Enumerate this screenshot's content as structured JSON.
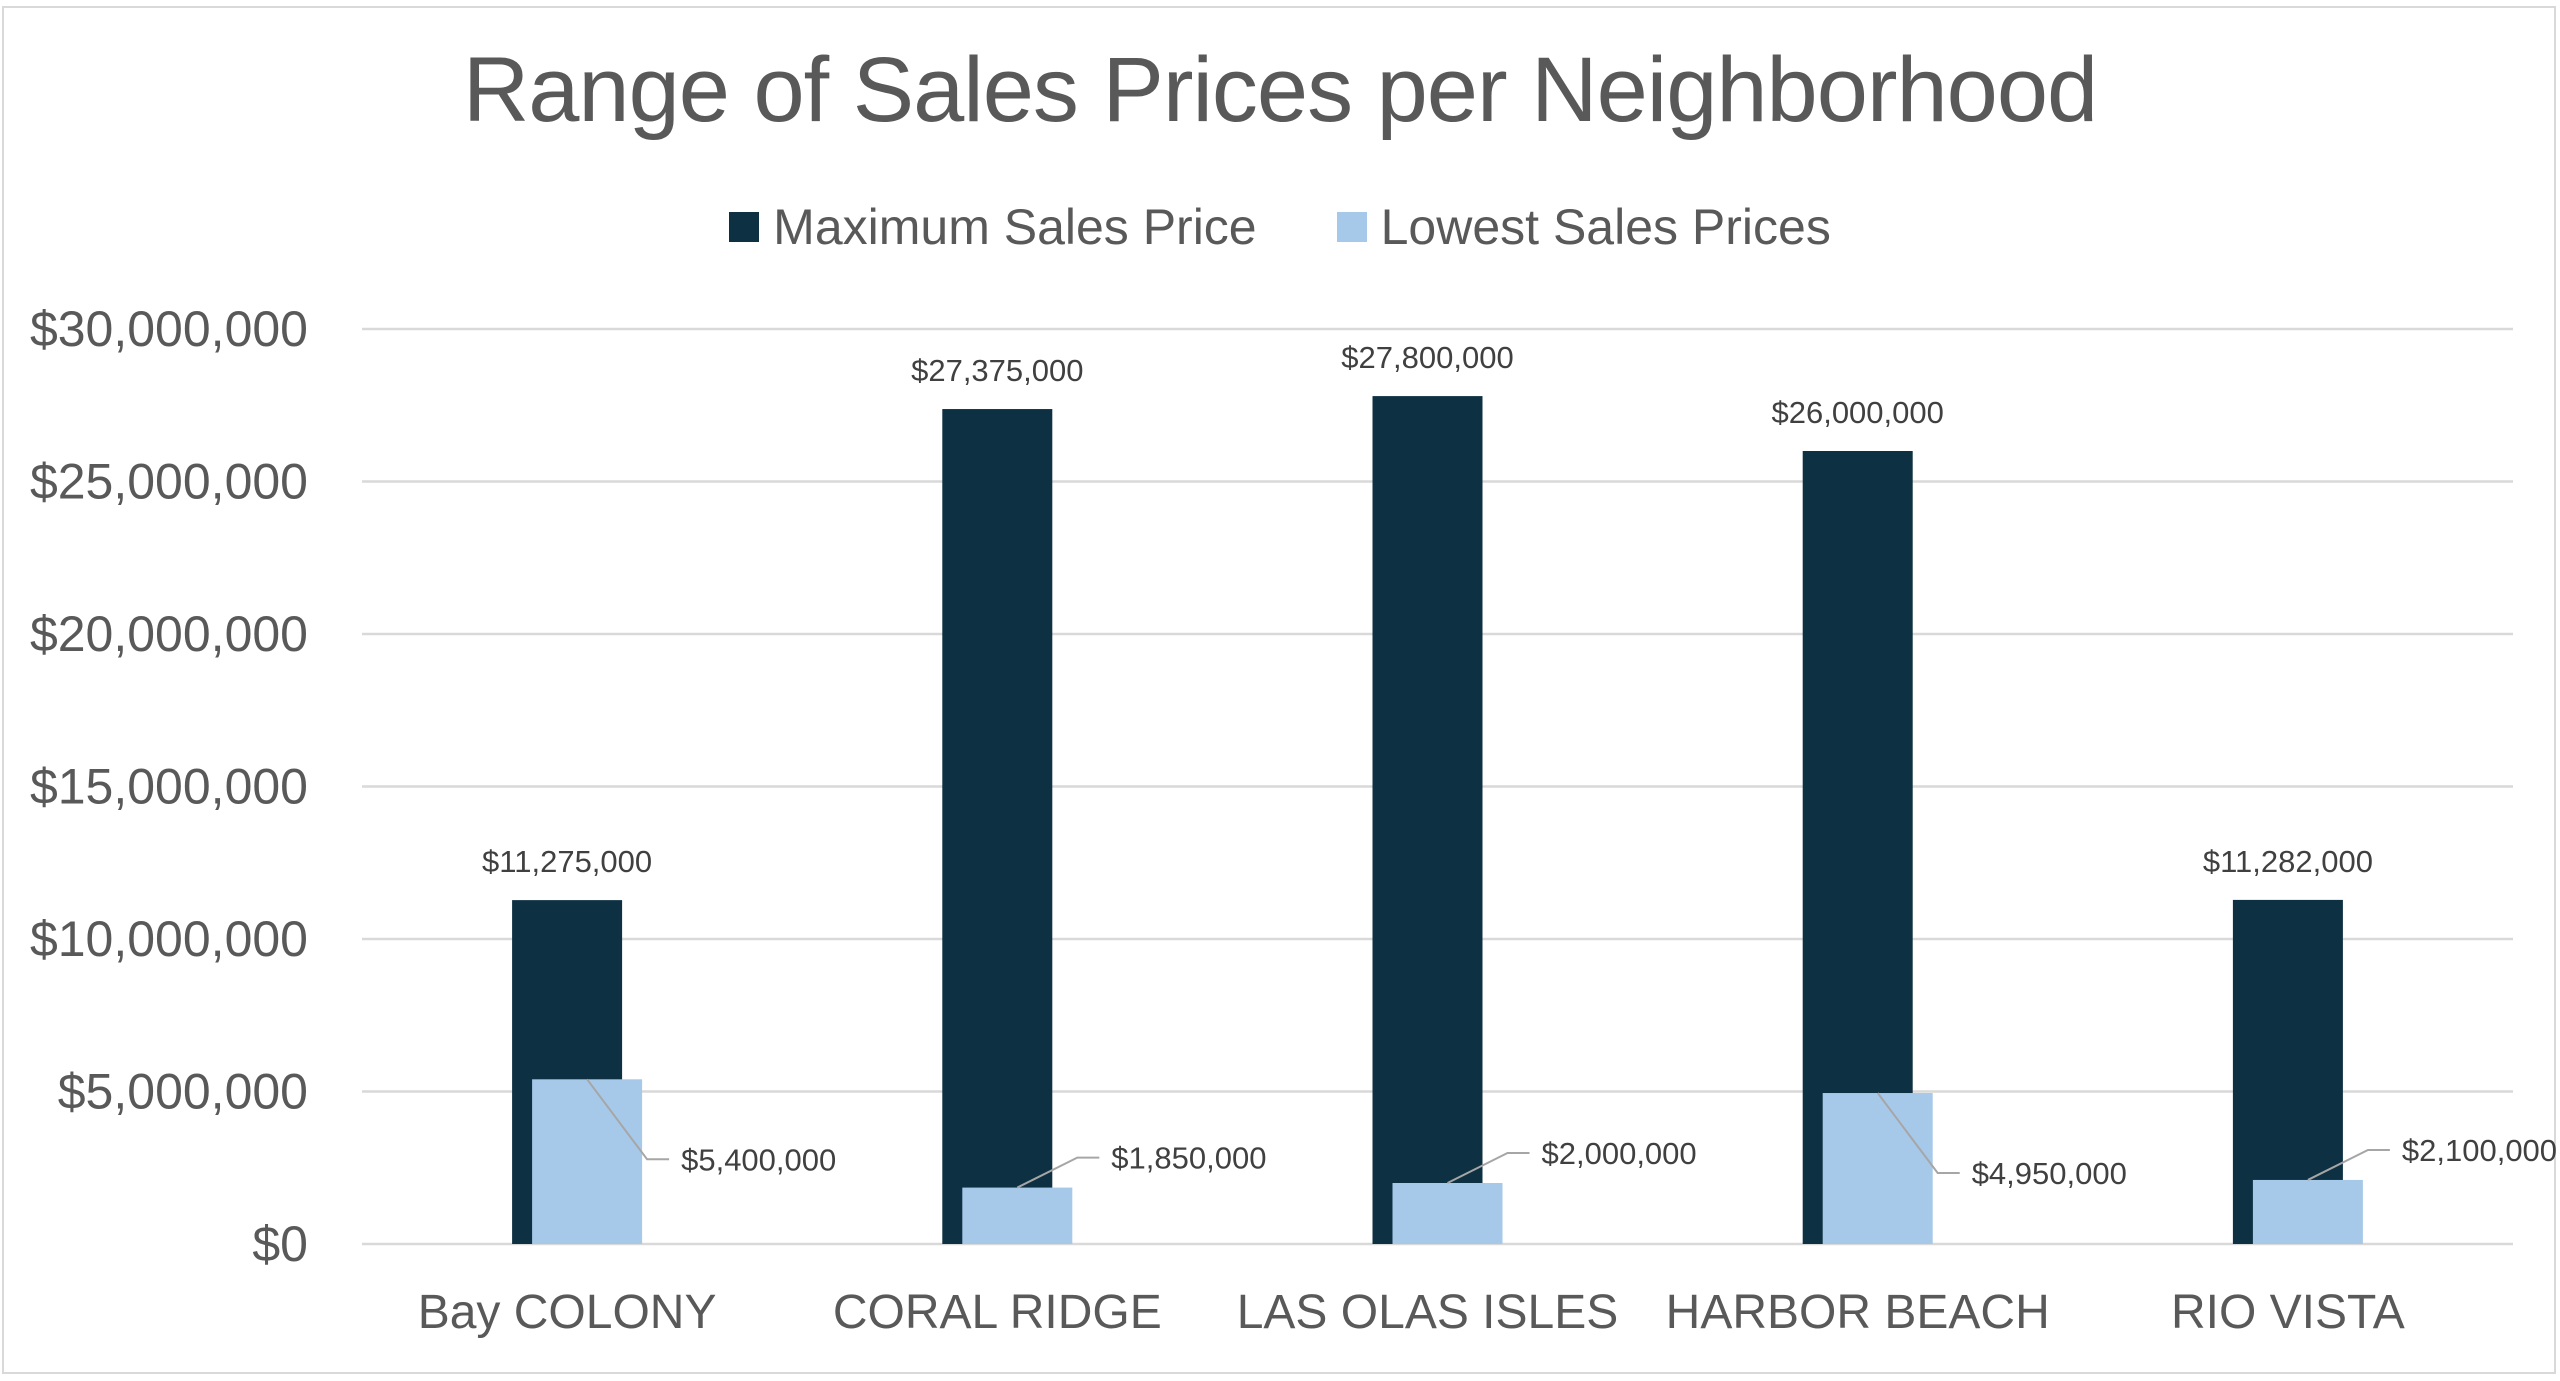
{
  "chart_data": {
    "type": "bar",
    "title": "Range of Sales Prices per Neighborhood",
    "xlabel": "",
    "ylabel": "",
    "categories": [
      "Bay COLONY",
      "CORAL RIDGE",
      "LAS OLAS ISLES",
      "HARBOR BEACH",
      "RIO VISTA"
    ],
    "series": [
      {
        "name": "Maximum Sales Price",
        "color": "#0D3042",
        "values": [
          11275000,
          27375000,
          27800000,
          26000000,
          11282000
        ],
        "labels": [
          "$11,275,000",
          "$27,375,000",
          "$27,800,000",
          "$26,000,000",
          "$11,282,000"
        ]
      },
      {
        "name": "Lowest Sales Prices",
        "color": "#A6C9EA",
        "values": [
          5400000,
          1850000,
          2000000,
          4950000,
          2100000
        ],
        "labels": [
          "$5,400,000",
          "$1,850,000",
          "$2,000,000",
          "$4,950,000",
          "$2,100,000"
        ]
      }
    ],
    "ylim": [
      0,
      30000000
    ],
    "yticks": [
      0,
      5000000,
      10000000,
      15000000,
      20000000,
      25000000,
      30000000
    ],
    "ytick_labels": [
      "$0",
      "$5,000,000",
      "$10,000,000",
      "$15,000,000",
      "$20,000,000",
      "$25,000,000",
      "$30,000,000"
    ],
    "grid": true,
    "legend_position": "top-center",
    "gridline_color": "#D9D9D9",
    "text_color": "#595959"
  }
}
